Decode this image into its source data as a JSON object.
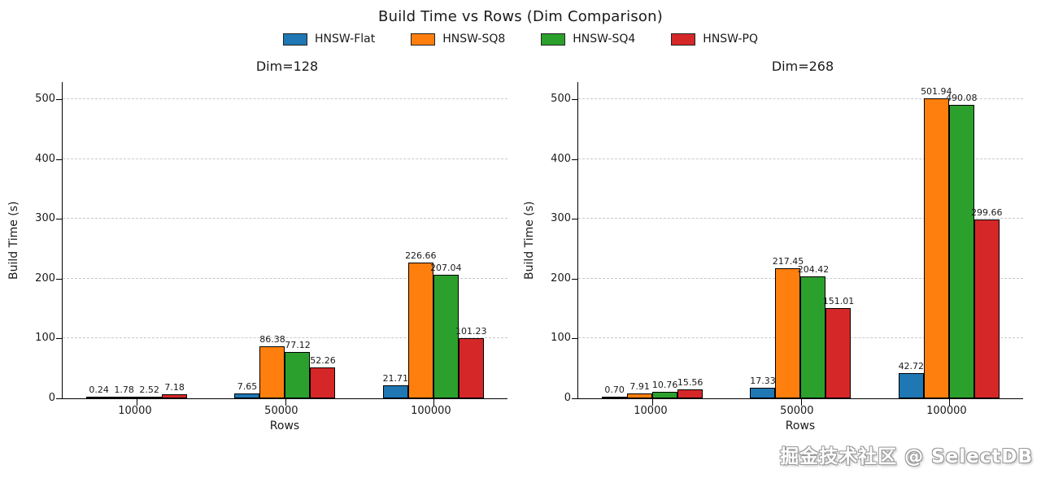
{
  "title": "Build Time vs Rows (Dim Comparison)",
  "legend": [
    {
      "label": "HNSW-Flat",
      "color": "#1f77b4"
    },
    {
      "label": "HNSW-SQ8",
      "color": "#ff7f0e"
    },
    {
      "label": "HNSW-SQ4",
      "color": "#2ca02c"
    },
    {
      "label": "HNSW-PQ",
      "color": "#d62728"
    }
  ],
  "watermark": "掘金技术社区 @ SelectDB",
  "chart_data": [
    {
      "type": "bar",
      "title": "Dim=128",
      "xlabel": "Rows",
      "ylabel": "Build Time (s)",
      "categories": [
        "10000",
        "50000",
        "100000"
      ],
      "series": [
        {
          "name": "HNSW-Flat",
          "color": "#1f77b4",
          "values": [
            0.24,
            7.65,
            21.71
          ]
        },
        {
          "name": "HNSW-SQ8",
          "color": "#ff7f0e",
          "values": [
            1.78,
            86.38,
            226.66
          ]
        },
        {
          "name": "HNSW-SQ4",
          "color": "#2ca02c",
          "values": [
            2.52,
            77.12,
            207.04
          ]
        },
        {
          "name": "HNSW-PQ",
          "color": "#d62728",
          "values": [
            7.18,
            52.26,
            101.23
          ]
        }
      ],
      "ylim": [
        0,
        530
      ],
      "yticks": [
        0,
        100,
        200,
        300,
        400,
        500
      ],
      "grid": true,
      "legend_position": "top"
    },
    {
      "type": "bar",
      "title": "Dim=268",
      "xlabel": "Rows",
      "ylabel": "Build Time (s)",
      "categories": [
        "10000",
        "50000",
        "100000"
      ],
      "series": [
        {
          "name": "HNSW-Flat",
          "color": "#1f77b4",
          "values": [
            0.7,
            17.33,
            42.72
          ]
        },
        {
          "name": "HNSW-SQ8",
          "color": "#ff7f0e",
          "values": [
            7.91,
            217.45,
            501.94
          ]
        },
        {
          "name": "HNSW-SQ4",
          "color": "#2ca02c",
          "values": [
            10.76,
            204.42,
            490.08
          ]
        },
        {
          "name": "HNSW-PQ",
          "color": "#d62728",
          "values": [
            15.56,
            151.01,
            299.66
          ]
        }
      ],
      "ylim": [
        0,
        530
      ],
      "yticks": [
        0,
        100,
        200,
        300,
        400,
        500
      ],
      "grid": true,
      "legend_position": "top"
    }
  ]
}
